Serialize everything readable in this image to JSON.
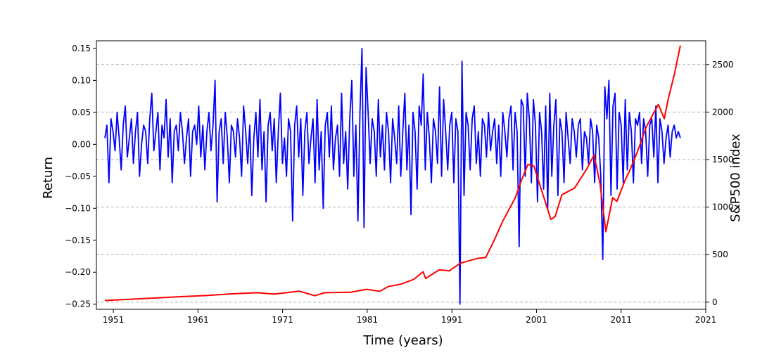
{
  "chart_data": {
    "type": "line",
    "xlabel": "Time (years)",
    "ylabel_left": "Return",
    "ylabel_right": "S&P500 index",
    "xlim": [
      1949,
      2021
    ],
    "ylim_left": [
      -0.258,
      0.162
    ],
    "ylim_right": [
      -75,
      2750
    ],
    "x_ticks": [
      1951,
      1961,
      1971,
      1981,
      1991,
      2001,
      2011,
      2021
    ],
    "y_left_ticks": [
      -0.25,
      -0.2,
      -0.15,
      -0.1,
      -0.05,
      0.0,
      0.05,
      0.1,
      0.15
    ],
    "y_left_tick_labels": [
      "−0.25",
      "−0.20",
      "−0.15",
      "−0.10",
      "−0.05",
      "0.00",
      "0.05",
      "0.10",
      "0.15"
    ],
    "y_right_ticks": [
      0,
      500,
      1000,
      1500,
      2000,
      2500
    ],
    "grid": "horizontal dashed at right-axis ticks",
    "colors": {
      "returns": "#0000ff",
      "index": "#ff0000"
    },
    "returns_start_year": 1950.0,
    "returns": [
      0.01,
      0.03,
      -0.06,
      0.04,
      0.02,
      -0.01,
      0.05,
      0.01,
      -0.04,
      0.03,
      0.06,
      -0.02,
      0.01,
      0.04,
      -0.03,
      0.02,
      0.05,
      -0.05,
      0.0,
      0.03,
      0.02,
      -0.03,
      0.04,
      0.08,
      -0.01,
      0.02,
      0.05,
      -0.04,
      0.03,
      0.01,
      0.07,
      -0.02,
      0.04,
      -0.06,
      0.02,
      0.03,
      -0.01,
      0.05,
      0.02,
      -0.03,
      0.01,
      0.04,
      -0.05,
      0.02,
      0.03,
      0.0,
      0.06,
      -0.02,
      0.03,
      -0.04,
      0.02,
      0.05,
      -0.01,
      0.03,
      0.1,
      -0.09,
      0.02,
      0.04,
      -0.03,
      0.05,
      0.01,
      -0.06,
      0.03,
      0.02,
      -0.02,
      0.04,
      0.01,
      -0.05,
      0.06,
      0.02,
      -0.03,
      0.03,
      -0.08,
      0.01,
      0.05,
      -0.02,
      0.07,
      -0.04,
      0.02,
      -0.09,
      0.03,
      0.05,
      -0.01,
      0.04,
      -0.06,
      0.02,
      0.08,
      -0.03,
      0.01,
      -0.05,
      0.04,
      0.02,
      -0.12,
      0.03,
      0.06,
      -0.02,
      0.04,
      -0.08,
      0.02,
      0.05,
      -0.03,
      0.01,
      0.04,
      -0.06,
      0.07,
      -0.04,
      0.02,
      -0.1,
      0.03,
      0.05,
      -0.02,
      0.06,
      -0.04,
      0.01,
      0.03,
      -0.05,
      0.08,
      -0.03,
      0.02,
      -0.07,
      0.04,
      0.1,
      -0.05,
      0.03,
      -0.12,
      0.05,
      0.15,
      -0.13,
      0.12,
      0.05,
      -0.03,
      0.04,
      0.02,
      -0.05,
      0.07,
      -0.02,
      0.03,
      -0.04,
      0.05,
      0.02,
      -0.06,
      0.04,
      0.01,
      -0.03,
      0.06,
      -0.05,
      0.02,
      0.08,
      -0.04,
      0.03,
      -0.11,
      0.05,
      0.02,
      -0.07,
      0.06,
      0.03,
      0.11,
      -0.04,
      0.05,
      0.01,
      -0.06,
      0.04,
      0.02,
      -0.03,
      0.09,
      -0.05,
      0.07,
      0.02,
      -0.04,
      0.03,
      0.05,
      -0.06,
      0.04,
      0.02,
      -0.25,
      0.13,
      -0.08,
      0.05,
      0.03,
      -0.04,
      0.04,
      0.06,
      -0.03,
      0.02,
      -0.05,
      0.04,
      0.03,
      -0.02,
      0.05,
      -0.01,
      0.02,
      0.04,
      -0.03,
      0.03,
      -0.05,
      0.05,
      0.02,
      -0.02,
      0.04,
      0.06,
      -0.04,
      0.05,
      0.02,
      -0.16,
      0.07,
      0.06,
      -0.05,
      0.08,
      0.04,
      -0.06,
      0.07,
      0.03,
      -0.09,
      0.05,
      0.02,
      -0.07,
      0.06,
      -0.1,
      0.08,
      -0.05,
      0.03,
      0.07,
      -0.08,
      0.04,
      0.02,
      -0.06,
      0.05,
      0.01,
      -0.03,
      0.04,
      0.02,
      -0.02,
      0.03,
      0.04,
      -0.04,
      0.02,
      0.01,
      -0.03,
      0.04,
      0.02,
      -0.06,
      0.03,
      0.01,
      -0.05,
      -0.18,
      0.09,
      0.04,
      0.1,
      -0.08,
      0.06,
      0.08,
      -0.07,
      0.05,
      0.03,
      -0.06,
      0.07,
      -0.04,
      0.05,
      0.02,
      -0.06,
      0.04,
      0.03,
      0.05,
      -0.03,
      0.04,
      0.02,
      -0.05,
      0.03,
      0.04,
      -0.02,
      0.06,
      -0.06,
      0.04,
      0.02,
      -0.03,
      0.01,
      0.03,
      -0.02,
      0.02,
      0.03,
      0.01,
      0.02,
      0.01
    ],
    "index_series": {
      "x": [
        1950.0,
        1955.0,
        1959.0,
        1962.0,
        1965.0,
        1968.0,
        1970.0,
        1973.0,
        1974.8,
        1976.0,
        1979.0,
        1980.9,
        1982.5,
        1983.5,
        1985.0,
        1986.5,
        1987.6,
        1987.9,
        1989.5,
        1990.7,
        1992.0,
        1994.0,
        1995.0,
        1996.0,
        1997.0,
        1998.5,
        1999.3,
        2000.0,
        2000.7,
        2001.7,
        2002.7,
        2003.2,
        2004.0,
        2005.5,
        2007.0,
        2007.8,
        2008.5,
        2009.2,
        2010.0,
        2010.5,
        2011.5,
        2012.0,
        2013.0,
        2014.0,
        2015.4,
        2016.1,
        2016.6,
        2017.3,
        2018.0
      ],
      "y": [
        17,
        40,
        58,
        70,
        88,
        100,
        85,
        116,
        68,
        100,
        104,
        135,
        115,
        165,
        190,
        240,
        320,
        250,
        340,
        330,
        410,
        460,
        470,
        650,
        850,
        1100,
        1300,
        1450,
        1430,
        1150,
        870,
        900,
        1130,
        1200,
        1410,
        1550,
        1250,
        740,
        1100,
        1060,
        1290,
        1380,
        1600,
        1850,
        2080,
        1930,
        2150,
        2400,
        2700
      ]
    }
  }
}
